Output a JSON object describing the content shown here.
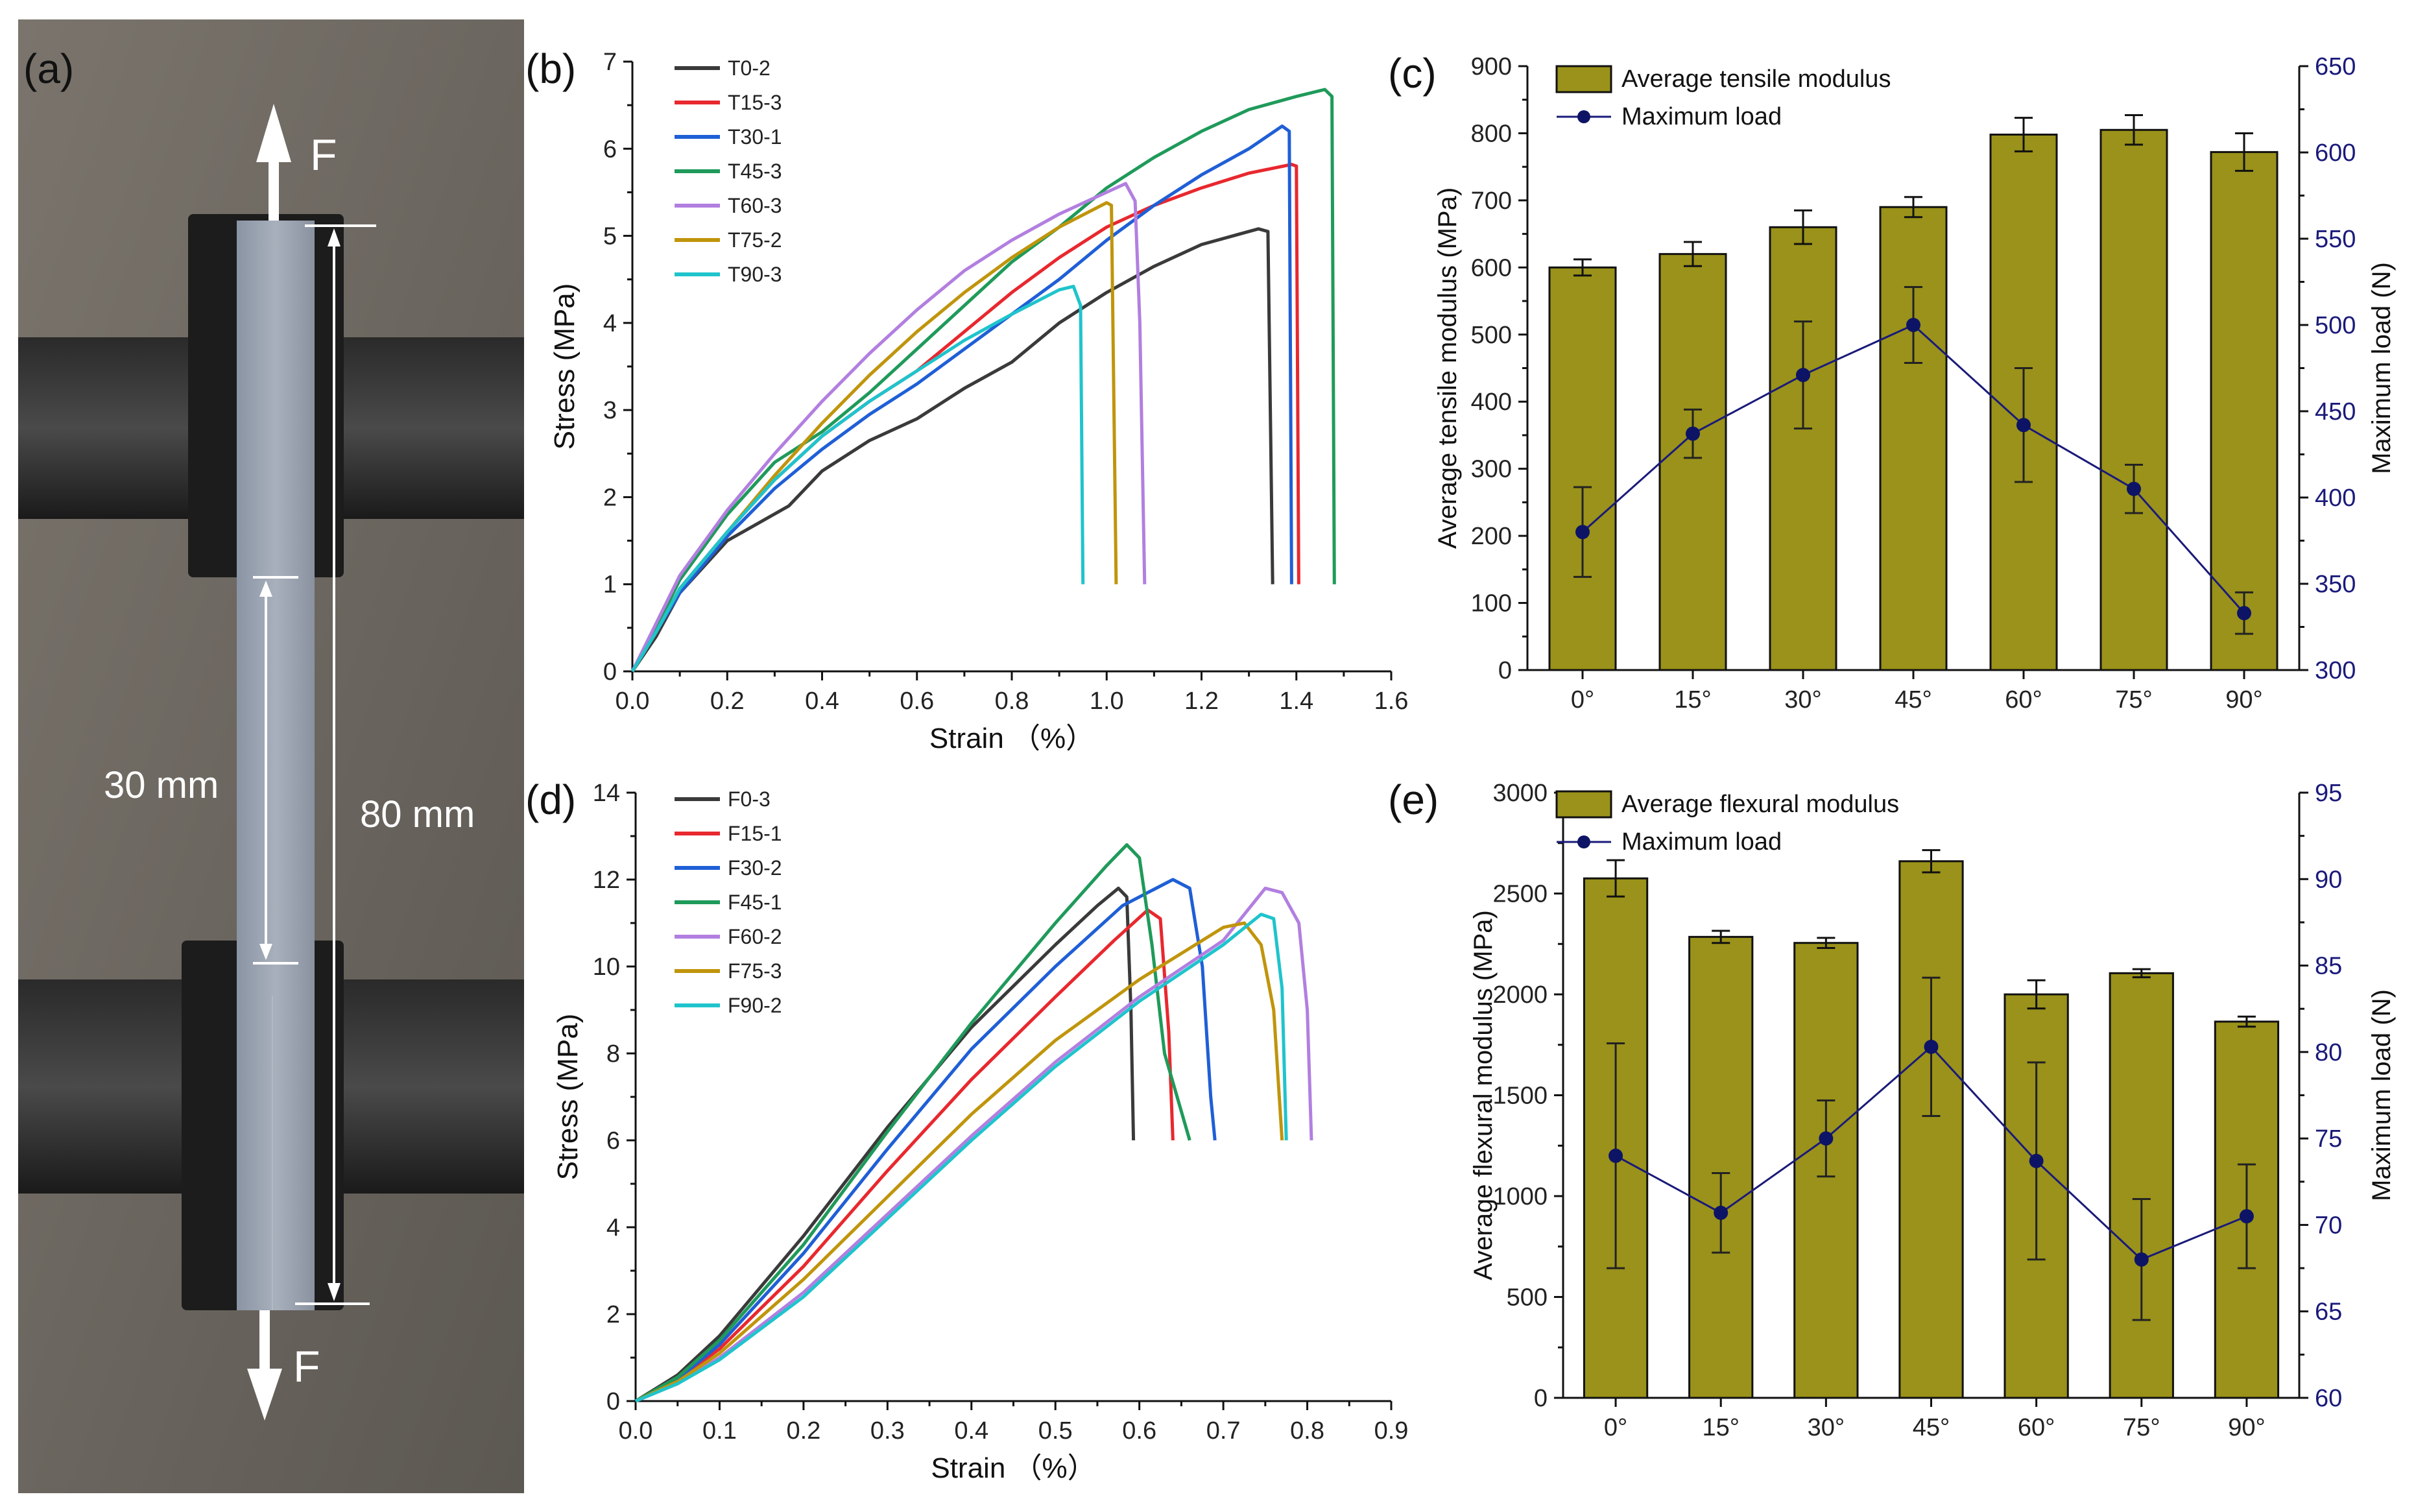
{
  "figure": {
    "labels": {
      "a": "(a)",
      "b": "(b)",
      "c": "(c)",
      "d": "(d)",
      "e": "(e)"
    },
    "photo": {
      "force_top": "F",
      "force_bottom": "F",
      "gauge_length": "30 mm",
      "total_length": "80 mm"
    }
  },
  "colors": {
    "T0-2": "#3a3a3a",
    "T15-3": "#e8282e",
    "T30-1": "#1f5fd6",
    "T45-3": "#1f9a5a",
    "T60-3": "#b27fe0",
    "T75-2": "#c0950c",
    "T90-3": "#1fc4cc",
    "bar": "#9a921a",
    "load": "#0d1466"
  },
  "chart_data": [
    {
      "id": "b",
      "type": "line",
      "xlabel": "Strain （%）",
      "ylabel": "Stress (MPa)",
      "xlim": [
        0,
        1.6
      ],
      "ylim": [
        0,
        7
      ],
      "xticks": [
        "0.0",
        "0.2",
        "0.4",
        "0.6",
        "0.8",
        "1.0",
        "1.2",
        "1.4",
        "1.6"
      ],
      "yticks": [
        "0",
        "1",
        "2",
        "3",
        "4",
        "5",
        "6",
        "7"
      ],
      "legend_position": "top-left",
      "series": [
        {
          "name": "T0-2",
          "color": "#3a3a3a",
          "points": [
            [
              0,
              0
            ],
            [
              0.05,
              0.4
            ],
            [
              0.1,
              0.9
            ],
            [
              0.2,
              1.5
            ],
            [
              0.33,
              1.9
            ],
            [
              0.4,
              2.3
            ],
            [
              0.5,
              2.65
            ],
            [
              0.6,
              2.9
            ],
            [
              0.7,
              3.25
            ],
            [
              0.8,
              3.55
            ],
            [
              0.9,
              4.0
            ],
            [
              1.0,
              4.35
            ],
            [
              1.1,
              4.65
            ],
            [
              1.2,
              4.9
            ],
            [
              1.32,
              5.08
            ],
            [
              1.34,
              5.05
            ],
            [
              1.35,
              1.0
            ]
          ]
        },
        {
          "name": "T15-3",
          "color": "#e8282e",
          "points": [
            [
              0,
              0
            ],
            [
              0.05,
              0.45
            ],
            [
              0.1,
              0.95
            ],
            [
              0.2,
              1.6
            ],
            [
              0.3,
              2.2
            ],
            [
              0.4,
              2.7
            ],
            [
              0.5,
              3.1
            ],
            [
              0.6,
              3.45
            ],
            [
              0.7,
              3.9
            ],
            [
              0.8,
              4.35
            ],
            [
              0.9,
              4.75
            ],
            [
              1.0,
              5.1
            ],
            [
              1.1,
              5.35
            ],
            [
              1.2,
              5.55
            ],
            [
              1.3,
              5.72
            ],
            [
              1.39,
              5.82
            ],
            [
              1.4,
              5.8
            ],
            [
              1.405,
              1.0
            ]
          ]
        },
        {
          "name": "T30-1",
          "color": "#1f5fd6",
          "points": [
            [
              0,
              0
            ],
            [
              0.05,
              0.45
            ],
            [
              0.1,
              0.9
            ],
            [
              0.2,
              1.55
            ],
            [
              0.3,
              2.1
            ],
            [
              0.4,
              2.55
            ],
            [
              0.5,
              2.95
            ],
            [
              0.6,
              3.3
            ],
            [
              0.7,
              3.7
            ],
            [
              0.8,
              4.1
            ],
            [
              0.9,
              4.5
            ],
            [
              1.0,
              4.95
            ],
            [
              1.1,
              5.35
            ],
            [
              1.2,
              5.7
            ],
            [
              1.3,
              6.0
            ],
            [
              1.37,
              6.26
            ],
            [
              1.385,
              6.2
            ],
            [
              1.39,
              1.0
            ]
          ]
        },
        {
          "name": "T45-3",
          "color": "#1f9a5a",
          "points": [
            [
              0,
              0
            ],
            [
              0.05,
              0.5
            ],
            [
              0.1,
              1.05
            ],
            [
              0.2,
              1.8
            ],
            [
              0.3,
              2.4
            ],
            [
              0.4,
              2.75
            ],
            [
              0.5,
              3.2
            ],
            [
              0.6,
              3.7
            ],
            [
              0.7,
              4.2
            ],
            [
              0.8,
              4.7
            ],
            [
              0.9,
              5.1
            ],
            [
              1.0,
              5.55
            ],
            [
              1.1,
              5.9
            ],
            [
              1.2,
              6.2
            ],
            [
              1.3,
              6.45
            ],
            [
              1.4,
              6.6
            ],
            [
              1.46,
              6.68
            ],
            [
              1.475,
              6.6
            ],
            [
              1.48,
              1.0
            ]
          ]
        },
        {
          "name": "T60-3",
          "color": "#b27fe0",
          "points": [
            [
              0,
              0
            ],
            [
              0.05,
              0.55
            ],
            [
              0.1,
              1.1
            ],
            [
              0.2,
              1.85
            ],
            [
              0.3,
              2.5
            ],
            [
              0.4,
              3.1
            ],
            [
              0.5,
              3.65
            ],
            [
              0.6,
              4.15
            ],
            [
              0.7,
              4.6
            ],
            [
              0.8,
              4.95
            ],
            [
              0.9,
              5.25
            ],
            [
              1.0,
              5.5
            ],
            [
              1.04,
              5.6
            ],
            [
              1.06,
              5.4
            ],
            [
              1.07,
              4.0
            ],
            [
              1.08,
              1.0
            ]
          ]
        },
        {
          "name": "T75-2",
          "color": "#c0950c",
          "points": [
            [
              0,
              0
            ],
            [
              0.05,
              0.45
            ],
            [
              0.1,
              0.95
            ],
            [
              0.2,
              1.6
            ],
            [
              0.3,
              2.25
            ],
            [
              0.4,
              2.85
            ],
            [
              0.5,
              3.4
            ],
            [
              0.6,
              3.9
            ],
            [
              0.7,
              4.35
            ],
            [
              0.8,
              4.75
            ],
            [
              0.9,
              5.1
            ],
            [
              1.0,
              5.38
            ],
            [
              1.01,
              5.35
            ],
            [
              1.02,
              1.0
            ]
          ]
        },
        {
          "name": "T90-3",
          "color": "#1fc4cc",
          "points": [
            [
              0,
              0
            ],
            [
              0.05,
              0.45
            ],
            [
              0.1,
              0.95
            ],
            [
              0.2,
              1.6
            ],
            [
              0.3,
              2.2
            ],
            [
              0.4,
              2.7
            ],
            [
              0.5,
              3.1
            ],
            [
              0.6,
              3.45
            ],
            [
              0.7,
              3.8
            ],
            [
              0.8,
              4.1
            ],
            [
              0.9,
              4.38
            ],
            [
              0.93,
              4.42
            ],
            [
              0.945,
              4.2
            ],
            [
              0.95,
              1.0
            ]
          ]
        }
      ]
    },
    {
      "id": "d",
      "type": "line",
      "xlabel": "Strain （%）",
      "ylabel": "Stress (MPa)",
      "xlim": [
        0,
        0.9
      ],
      "ylim": [
        0,
        14
      ],
      "xticks": [
        "0.0",
        "0.1",
        "0.2",
        "0.3",
        "0.4",
        "0.5",
        "0.6",
        "0.7",
        "0.8",
        "0.9"
      ],
      "yticks": [
        "0",
        "2",
        "4",
        "6",
        "8",
        "10",
        "12",
        "14"
      ],
      "legend_position": "top-left",
      "series": [
        {
          "name": "F0-3",
          "color": "#3a3a3a",
          "points": [
            [
              0,
              0
            ],
            [
              0.05,
              0.6
            ],
            [
              0.1,
              1.5
            ],
            [
              0.2,
              3.8
            ],
            [
              0.3,
              6.3
            ],
            [
              0.4,
              8.6
            ],
            [
              0.5,
              10.5
            ],
            [
              0.55,
              11.4
            ],
            [
              0.575,
              11.8
            ],
            [
              0.585,
              11.6
            ],
            [
              0.59,
              9.0
            ],
            [
              0.593,
              6.0
            ]
          ]
        },
        {
          "name": "F15-1",
          "color": "#e8282e",
          "points": [
            [
              0,
              0
            ],
            [
              0.05,
              0.5
            ],
            [
              0.1,
              1.2
            ],
            [
              0.2,
              3.1
            ],
            [
              0.3,
              5.3
            ],
            [
              0.4,
              7.4
            ],
            [
              0.5,
              9.3
            ],
            [
              0.57,
              10.6
            ],
            [
              0.61,
              11.3
            ],
            [
              0.625,
              11.1
            ],
            [
              0.635,
              8.5
            ],
            [
              0.64,
              6.0
            ]
          ]
        },
        {
          "name": "F30-2",
          "color": "#1f5fd6",
          "points": [
            [
              0,
              0
            ],
            [
              0.05,
              0.5
            ],
            [
              0.1,
              1.3
            ],
            [
              0.2,
              3.4
            ],
            [
              0.3,
              5.8
            ],
            [
              0.4,
              8.1
            ],
            [
              0.5,
              10.0
            ],
            [
              0.58,
              11.4
            ],
            [
              0.64,
              12.0
            ],
            [
              0.66,
              11.8
            ],
            [
              0.675,
              10.0
            ],
            [
              0.685,
              7.0
            ],
            [
              0.69,
              6.0
            ]
          ]
        },
        {
          "name": "F45-1",
          "color": "#1f9a5a",
          "points": [
            [
              0,
              0
            ],
            [
              0.05,
              0.55
            ],
            [
              0.1,
              1.4
            ],
            [
              0.2,
              3.6
            ],
            [
              0.3,
              6.2
            ],
            [
              0.4,
              8.7
            ],
            [
              0.5,
              11.0
            ],
            [
              0.56,
              12.3
            ],
            [
              0.585,
              12.8
            ],
            [
              0.6,
              12.5
            ],
            [
              0.615,
              10.5
            ],
            [
              0.63,
              8.0
            ],
            [
              0.66,
              6.0
            ]
          ]
        },
        {
          "name": "F60-2",
          "color": "#b27fe0",
          "points": [
            [
              0,
              0
            ],
            [
              0.05,
              0.4
            ],
            [
              0.1,
              1.0
            ],
            [
              0.2,
              2.5
            ],
            [
              0.3,
              4.3
            ],
            [
              0.4,
              6.1
            ],
            [
              0.5,
              7.8
            ],
            [
              0.6,
              9.3
            ],
            [
              0.7,
              10.6
            ],
            [
              0.75,
              11.8
            ],
            [
              0.77,
              11.7
            ],
            [
              0.79,
              11.0
            ],
            [
              0.8,
              9.0
            ],
            [
              0.805,
              6.0
            ]
          ]
        },
        {
          "name": "F75-3",
          "color": "#c0950c",
          "points": [
            [
              0,
              0
            ],
            [
              0.05,
              0.45
            ],
            [
              0.1,
              1.1
            ],
            [
              0.2,
              2.8
            ],
            [
              0.3,
              4.7
            ],
            [
              0.4,
              6.6
            ],
            [
              0.5,
              8.3
            ],
            [
              0.6,
              9.7
            ],
            [
              0.7,
              10.9
            ],
            [
              0.725,
              11.0
            ],
            [
              0.745,
              10.5
            ],
            [
              0.76,
              9.0
            ],
            [
              0.77,
              6.0
            ]
          ]
        },
        {
          "name": "F90-2",
          "color": "#1fc4cc",
          "points": [
            [
              0,
              0
            ],
            [
              0.05,
              0.4
            ],
            [
              0.1,
              0.95
            ],
            [
              0.2,
              2.4
            ],
            [
              0.3,
              4.2
            ],
            [
              0.4,
              6.0
            ],
            [
              0.5,
              7.7
            ],
            [
              0.6,
              9.2
            ],
            [
              0.7,
              10.5
            ],
            [
              0.745,
              11.2
            ],
            [
              0.76,
              11.1
            ],
            [
              0.77,
              9.5
            ],
            [
              0.775,
              6.0
            ]
          ]
        }
      ]
    },
    {
      "id": "c",
      "type": "bar",
      "categories": [
        "0°",
        "15°",
        "30°",
        "45°",
        "60°",
        "75°",
        "90°"
      ],
      "series": [
        {
          "name": "Average tensile modulus",
          "axis": "left",
          "values": [
            600,
            620,
            660,
            690,
            798,
            805,
            772
          ],
          "errors": [
            12,
            18,
            25,
            15,
            25,
            22,
            28
          ]
        },
        {
          "name": "Maximum load",
          "type": "line",
          "axis": "right",
          "values": [
            380,
            437,
            471,
            500,
            442,
            405,
            333
          ],
          "errors": [
            26,
            14,
            31,
            22,
            33,
            14,
            12
          ]
        }
      ],
      "ylabel": "Average tensile modulus (MPa)",
      "y2label": "Maximum load (N)",
      "ylim": [
        0,
        900
      ],
      "y2lim": [
        300,
        650
      ],
      "yticks": [
        "0",
        "100",
        "200",
        "300",
        "400",
        "500",
        "600",
        "700",
        "800",
        "900"
      ],
      "y2ticks": [
        "300",
        "350",
        "400",
        "450",
        "500",
        "550",
        "600",
        "650"
      ],
      "legend_position": "top-left"
    },
    {
      "id": "e",
      "type": "bar",
      "categories": [
        "0°",
        "15°",
        "30°",
        "45°",
        "60°",
        "75°",
        "90°"
      ],
      "series": [
        {
          "name": "Average flexural modulus",
          "axis": "left",
          "values": [
            2575,
            2285,
            2255,
            2660,
            2000,
            2105,
            1865
          ],
          "errors": [
            90,
            30,
            25,
            55,
            70,
            20,
            25
          ]
        },
        {
          "name": "Maximum load",
          "type": "line",
          "axis": "right",
          "values": [
            74,
            70.7,
            75,
            80.3,
            73.7,
            68,
            70.5
          ],
          "errors": [
            6.5,
            2.3,
            2.2,
            4.0,
            5.7,
            3.5,
            3.0
          ]
        }
      ],
      "ylabel": "Average flexural modulus (MPa)",
      "y2label": "Maximum load (N)",
      "ylim": [
        0,
        3000
      ],
      "y2lim": [
        60,
        95
      ],
      "yticks": [
        "0",
        "500",
        "1000",
        "1500",
        "2000",
        "2500",
        "3000"
      ],
      "y2ticks": [
        "60",
        "65",
        "70",
        "75",
        "80",
        "85",
        "90",
        "95"
      ],
      "legend_position": "top-left"
    }
  ]
}
